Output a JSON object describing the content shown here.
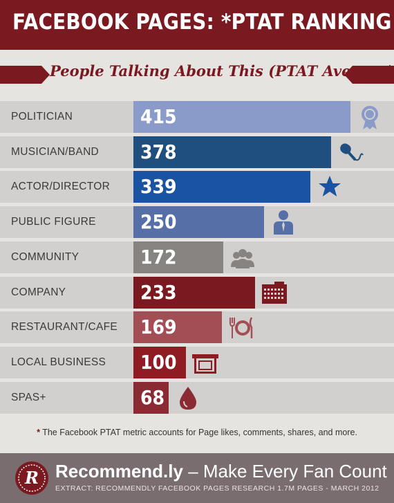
{
  "header": {
    "title": "FACEBOOK PAGES: *PTAT RANKING"
  },
  "chart_data": {
    "type": "bar",
    "subtitle": "People Talking About This (PTAT Average)",
    "categories": [
      "POLITICIAN",
      "MUSICIAN/BAND",
      "ACTOR/DIRECTOR",
      "PUBLIC FIGURE",
      "COMMUNITY",
      "COMPANY",
      "RESTAURANT/CAFE",
      "LOCAL BUSINESS",
      "SPAS+"
    ],
    "values": [
      415,
      378,
      339,
      250,
      172,
      233,
      169,
      100,
      68
    ],
    "value_labels": [
      "415",
      "378",
      "339",
      "250",
      "172",
      "233",
      "169",
      "100",
      "68"
    ],
    "bar_colors": [
      "#8a9bc9",
      "#1f4f7e",
      "#1a53a1",
      "#566fa6",
      "#878381",
      "#7a1920",
      "#a34e54",
      "#8e1c22",
      "#8a2a33"
    ],
    "icons": [
      "award-ribbon-icon",
      "microphone-icon",
      "star-icon",
      "person-icon",
      "group-icon",
      "building-icon",
      "plate-cutlery-icon",
      "storefront-icon",
      "drop-icon"
    ],
    "icon_colors": [
      "#8a9bc9",
      "#1f4f7e",
      "#1a53a1",
      "#566fa6",
      "#878381",
      "#7a1920",
      "#a34e54",
      "#8e1c22",
      "#8a2a33"
    ],
    "xlim": [
      0,
      415
    ]
  },
  "footnote": {
    "marker": "*",
    "text": "The Facebook PTAT metric accounts for Page likes, comments, shares, and more."
  },
  "footer": {
    "logo_letter": "R",
    "brand": "Recommend.ly",
    "tagline": "– Make Every Fan Count",
    "extract": "EXTRACT: RECOMMENDLY FACEBOOK PAGES RESEARCH 1.7M PAGES - MARCH 2012"
  }
}
